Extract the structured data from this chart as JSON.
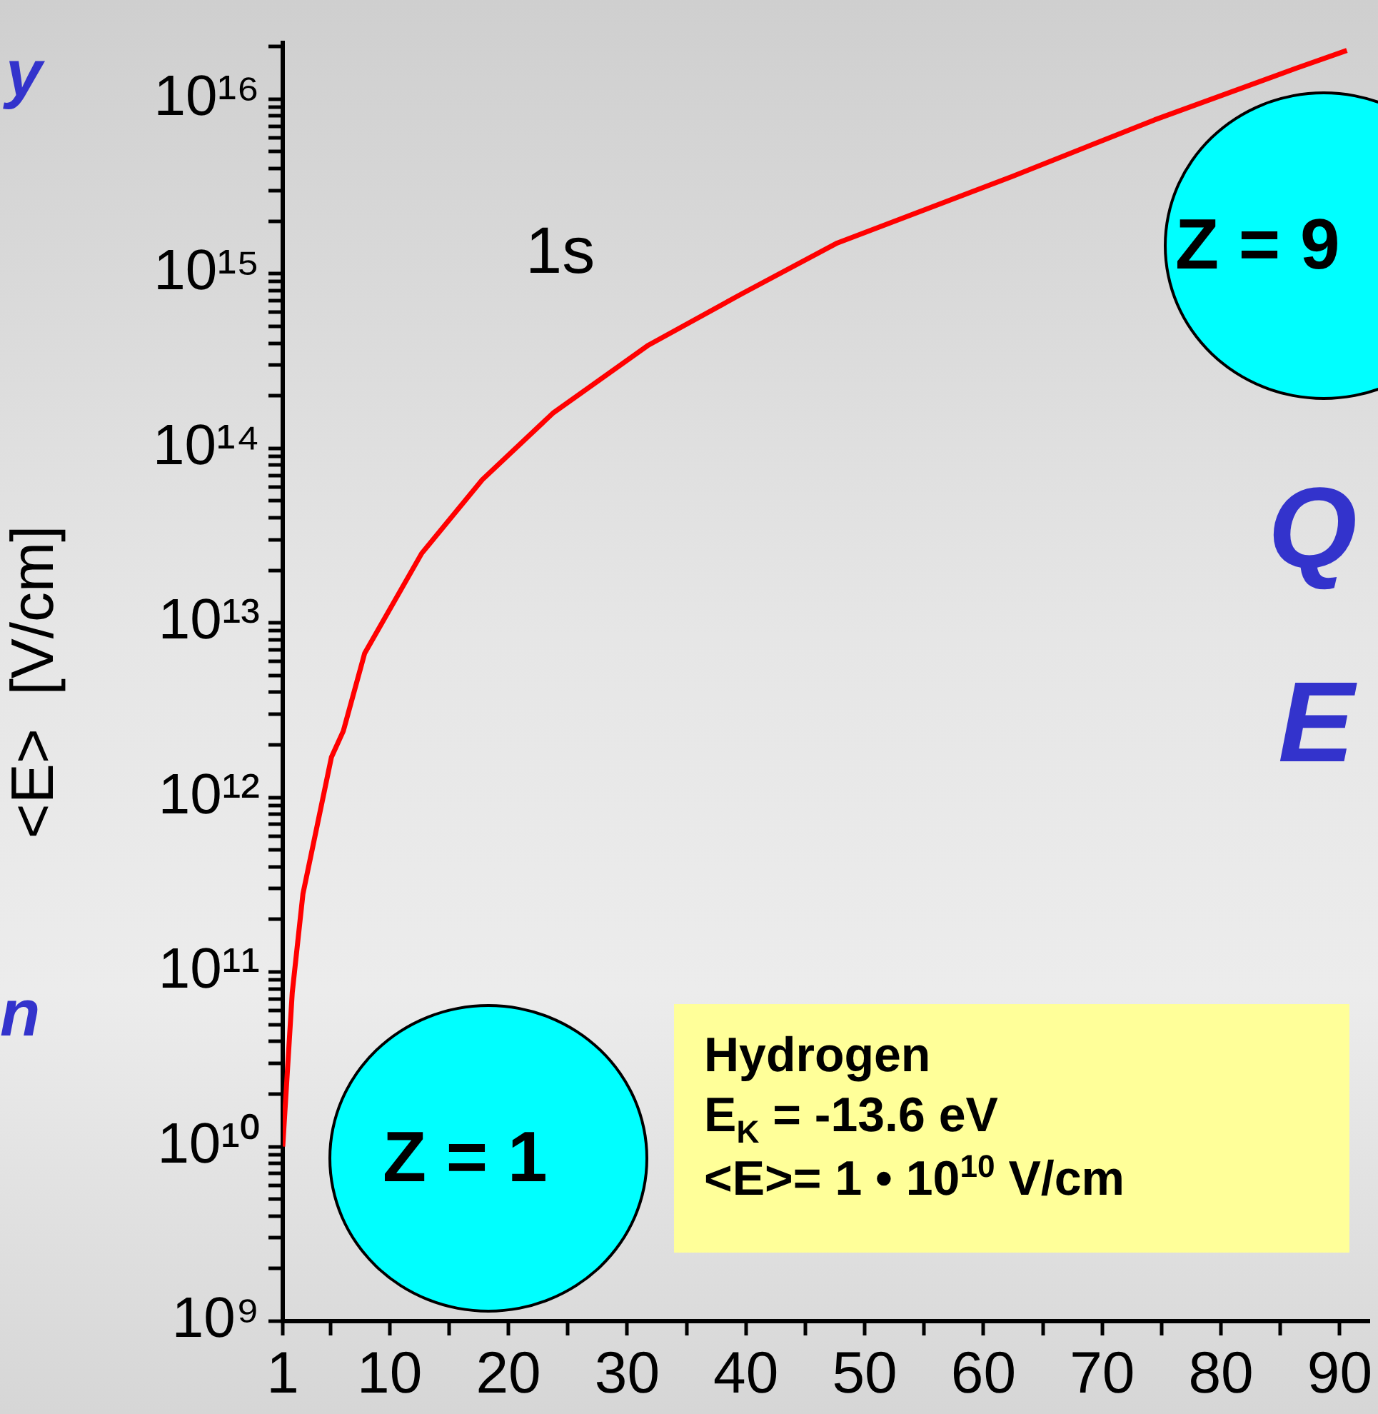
{
  "chart_data": {
    "type": "line",
    "ylabel": "<E>  [V/cm]",
    "x": [
      1,
      1.8,
      2.7,
      3.9,
      5.1,
      6.1,
      7.9,
      12.7,
      17.8,
      23.8,
      31.8,
      39.7,
      47.7,
      62.4,
      74.4,
      86.3,
      90.6
    ],
    "series": [
      {
        "color": "#ff0000",
        "values": [
          10000000000.0,
          76000000000.0,
          280000000000.0,
          690000000000.0,
          1700000000000.0,
          2400000000000.0,
          6700000000000.0,
          25000000000000.0,
          66000000000000.0,
          160000000000000.0,
          390000000000000.0,
          770000000000000.0,
          1500000000000000.0,
          3600000000000000.0,
          7600000000000000.0,
          1.5e+16,
          1.9e+16
        ]
      }
    ],
    "log": "y",
    "xlim": [
      1,
      92.5
    ],
    "ylim": [
      1000000000.0,
      2.1e+16
    ],
    "xticks": [
      1,
      {
        "value": 5,
        "label": null
      },
      10,
      {
        "value": 15,
        "label": null
      },
      20,
      {
        "value": 25,
        "label": null
      },
      30,
      {
        "value": 35,
        "label": null
      },
      40,
      {
        "value": 45,
        "label": null
      },
      50,
      {
        "value": 55,
        "label": null
      },
      60,
      {
        "value": 65,
        "label": null
      },
      70,
      {
        "value": 75,
        "label": null
      },
      80,
      {
        "value": 85,
        "label": null
      },
      90
    ],
    "yticks": [
      {
        "value": 1000000000.0,
        "label": "10⁹"
      },
      {
        "value": 2000000000.0,
        "label": null
      },
      {
        "value": 3000000000.0,
        "label": null
      },
      {
        "value": 4000000000.0,
        "label": null
      },
      {
        "value": 5000000000.0,
        "label": null
      },
      {
        "value": 6000000000.0,
        "label": null
      },
      {
        "value": 7000000000.0,
        "label": null
      },
      {
        "value": 8000000000.0,
        "label": null
      },
      {
        "value": 9000000000.0,
        "label": null
      },
      {
        "value": 10000000000.0,
        "label": "10¹⁰"
      },
      {
        "value": 20000000000.0,
        "label": null
      },
      {
        "value": 30000000000.0,
        "label": null
      },
      {
        "value": 40000000000.0,
        "label": null
      },
      {
        "value": 50000000000.0,
        "label": null
      },
      {
        "value": 60000000000.0,
        "label": null
      },
      {
        "value": 70000000000.0,
        "label": null
      },
      {
        "value": 80000000000.0,
        "label": null
      },
      {
        "value": 90000000000.0,
        "label": null
      },
      {
        "value": 100000000000.0,
        "label": "10¹¹"
      },
      {
        "value": 200000000000.0,
        "label": null
      },
      {
        "value": 300000000000.0,
        "label": null
      },
      {
        "value": 400000000000.0,
        "label": null
      },
      {
        "value": 500000000000.0,
        "label": null
      },
      {
        "value": 600000000000.0,
        "label": null
      },
      {
        "value": 700000000000.0,
        "label": null
      },
      {
        "value": 800000000000.0,
        "label": null
      },
      {
        "value": 900000000000.0,
        "label": null
      },
      {
        "value": 1000000000000.0,
        "label": "10¹²"
      },
      {
        "value": 2000000000000.0,
        "label": null
      },
      {
        "value": 3000000000000.0,
        "label": null
      },
      {
        "value": 4000000000000.0,
        "label": null
      },
      {
        "value": 5000000000000.0,
        "label": null
      },
      {
        "value": 6000000000000.0,
        "label": null
      },
      {
        "value": 7000000000000.0,
        "label": null
      },
      {
        "value": 8000000000000.0,
        "label": null
      },
      {
        "value": 9000000000000.0,
        "label": null
      },
      {
        "value": 10000000000000.0,
        "label": "10¹³"
      },
      {
        "value": 20000000000000.0,
        "label": null
      },
      {
        "value": 30000000000000.0,
        "label": null
      },
      {
        "value": 40000000000000.0,
        "label": null
      },
      {
        "value": 50000000000000.0,
        "label": null
      },
      {
        "value": 60000000000000.0,
        "label": null
      },
      {
        "value": 70000000000000.0,
        "label": null
      },
      {
        "value": 80000000000000.0,
        "label": null
      },
      {
        "value": 90000000000000.0,
        "label": null
      },
      {
        "value": 100000000000000.0,
        "label": "10¹⁴"
      },
      {
        "value": 200000000000000.0,
        "label": null
      },
      {
        "value": 300000000000000.0,
        "label": null
      },
      {
        "value": 400000000000000.0,
        "label": null
      },
      {
        "value": 500000000000000.0,
        "label": null
      },
      {
        "value": 600000000000000.0,
        "label": null
      },
      {
        "value": 700000000000000.0,
        "label": null
      },
      {
        "value": 800000000000000.0,
        "label": null
      },
      {
        "value": 900000000000000.0,
        "label": null
      },
      {
        "value": 1000000000000000.0,
        "label": "10¹⁵"
      },
      {
        "value": 2000000000000000.0,
        "label": null
      },
      {
        "value": 3000000000000000.0,
        "label": null
      },
      {
        "value": 4000000000000000.0,
        "label": null
      },
      {
        "value": 5000000000000000.0,
        "label": null
      },
      {
        "value": 6000000000000000.0,
        "label": null
      },
      {
        "value": 7000000000000000.0,
        "label": null
      },
      {
        "value": 8000000000000000.0,
        "label": null
      },
      {
        "value": 9000000000000000.0,
        "label": null
      },
      {
        "value": 1e+16,
        "label": "10¹⁶"
      },
      {
        "value": 2e+16,
        "label": null
      }
    ],
    "grid": false,
    "legend": false,
    "marker": "none",
    "line_style": "solid",
    "annotations": [
      "1s",
      "Z = 1",
      "Z = 9",
      "Hydrogen",
      "E$_{K}$  = -13.6 eV",
      "<E>= 1 • 10$^{10}$ V/cm",
      "y",
      "n",
      "Q",
      "E"
    ]
  }
}
